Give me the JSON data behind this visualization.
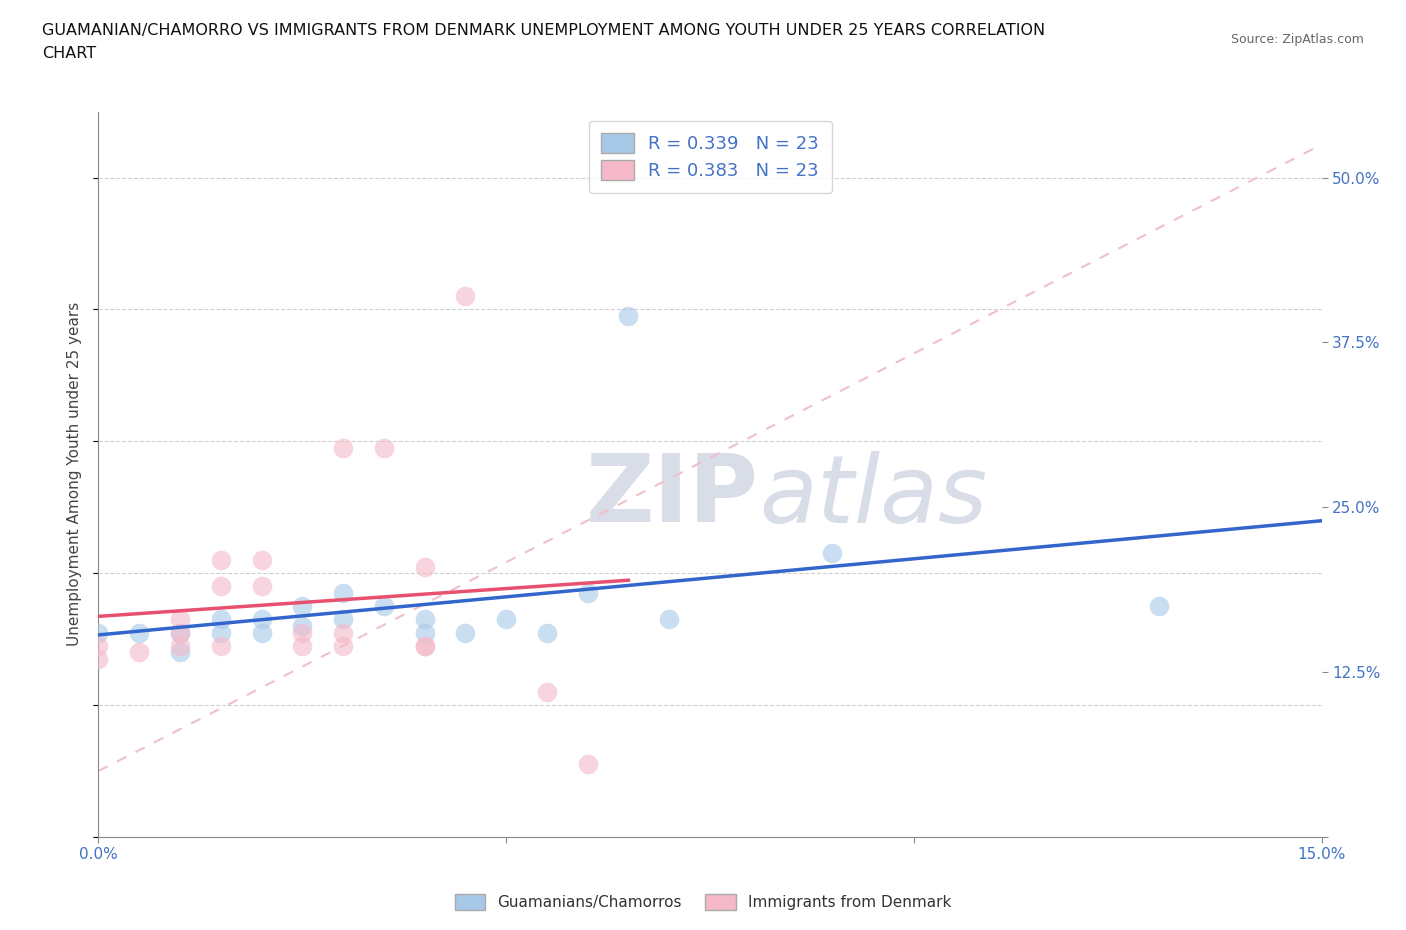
{
  "title_line1": "GUAMANIAN/CHAMORRO VS IMMIGRANTS FROM DENMARK UNEMPLOYMENT AMONG YOUTH UNDER 25 YEARS CORRELATION",
  "title_line2": "CHART",
  "source": "Source: ZipAtlas.com",
  "ylabel": "Unemployment Among Youth under 25 years",
  "xlim": [
    0.0,
    0.15
  ],
  "ylim": [
    0.0,
    0.55
  ],
  "xticks": [
    0.0,
    0.05,
    0.1,
    0.15
  ],
  "xtick_labels": [
    "0.0%",
    "",
    "",
    "15.0%"
  ],
  "yticks": [
    0.0,
    0.125,
    0.25,
    0.375,
    0.5
  ],
  "ytick_labels": [
    "",
    "12.5%",
    "25.0%",
    "37.5%",
    "50.0%"
  ],
  "blue_R": 0.339,
  "blue_N": 23,
  "pink_R": 0.383,
  "pink_N": 23,
  "blue_color": "#a8c8e8",
  "pink_color": "#f4b8c8",
  "blue_line_color": "#3366cc",
  "pink_line_color": "#e85070",
  "diagonal_color": "#f0c0c8",
  "blue_scatter_x": [
    0.0,
    0.005,
    0.01,
    0.01,
    0.015,
    0.015,
    0.02,
    0.02,
    0.025,
    0.025,
    0.03,
    0.03,
    0.035,
    0.04,
    0.04,
    0.045,
    0.05,
    0.055,
    0.06,
    0.065,
    0.07,
    0.09,
    0.13
  ],
  "blue_scatter_y": [
    0.155,
    0.155,
    0.14,
    0.155,
    0.155,
    0.165,
    0.155,
    0.165,
    0.16,
    0.175,
    0.165,
    0.185,
    0.175,
    0.155,
    0.165,
    0.155,
    0.165,
    0.155,
    0.185,
    0.395,
    0.165,
    0.215,
    0.175
  ],
  "pink_scatter_x": [
    0.0,
    0.0,
    0.005,
    0.01,
    0.01,
    0.01,
    0.015,
    0.015,
    0.015,
    0.02,
    0.02,
    0.025,
    0.025,
    0.03,
    0.03,
    0.03,
    0.035,
    0.04,
    0.04,
    0.04,
    0.045,
    0.055,
    0.06
  ],
  "pink_scatter_y": [
    0.145,
    0.135,
    0.14,
    0.145,
    0.155,
    0.165,
    0.145,
    0.19,
    0.21,
    0.19,
    0.21,
    0.145,
    0.155,
    0.145,
    0.155,
    0.295,
    0.295,
    0.145,
    0.145,
    0.205,
    0.41,
    0.11,
    0.055
  ],
  "background_color": "#ffffff",
  "grid_color": "#cccccc",
  "watermark_color": "#dde4ef"
}
